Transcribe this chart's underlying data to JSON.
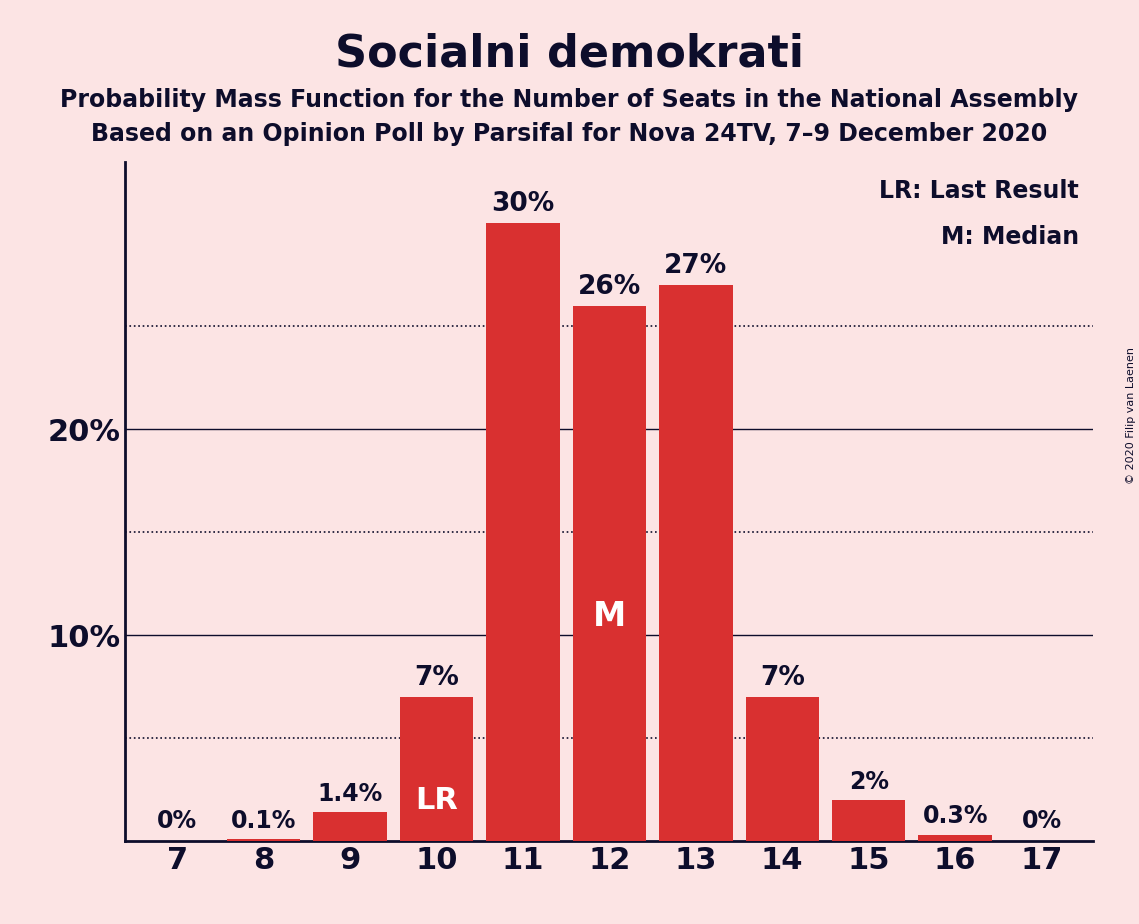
{
  "title": "Socialni demokrati",
  "subtitle1": "Probability Mass Function for the Number of Seats in the National Assembly",
  "subtitle2": "Based on an Opinion Poll by Parsifal for Nova 24TV, 7–9 December 2020",
  "copyright": "© 2020 Filip van Laenen",
  "categories": [
    7,
    8,
    9,
    10,
    11,
    12,
    13,
    14,
    15,
    16,
    17
  ],
  "values": [
    0.0,
    0.1,
    1.4,
    7.0,
    30.0,
    26.0,
    27.0,
    7.0,
    2.0,
    0.3,
    0.0
  ],
  "labels": [
    "0%",
    "0.1%",
    "1.4%",
    "7%",
    "30%",
    "26%",
    "27%",
    "7%",
    "2%",
    "0.3%",
    "0%"
  ],
  "bar_color": "#d93030",
  "background_color": "#fce4e4",
  "text_color": "#0d0d2b",
  "label_white_color": "#ffffff",
  "ytick_positions": [
    10,
    20
  ],
  "ytick_labels": [
    "10%",
    "20%"
  ],
  "ylim": [
    0,
    33
  ],
  "lr_bar_idx": 3,
  "median_bar_idx": 5,
  "dotted_lines": [
    5,
    15,
    25
  ],
  "solid_lines": [
    10,
    20
  ],
  "title_fontsize": 32,
  "subtitle_fontsize": 17,
  "label_fontsize_small": 17,
  "label_fontsize_large": 19,
  "ytick_fontsize": 22,
  "xtick_fontsize": 22,
  "legend_fontsize": 17,
  "lr_m_fontsize": 22
}
